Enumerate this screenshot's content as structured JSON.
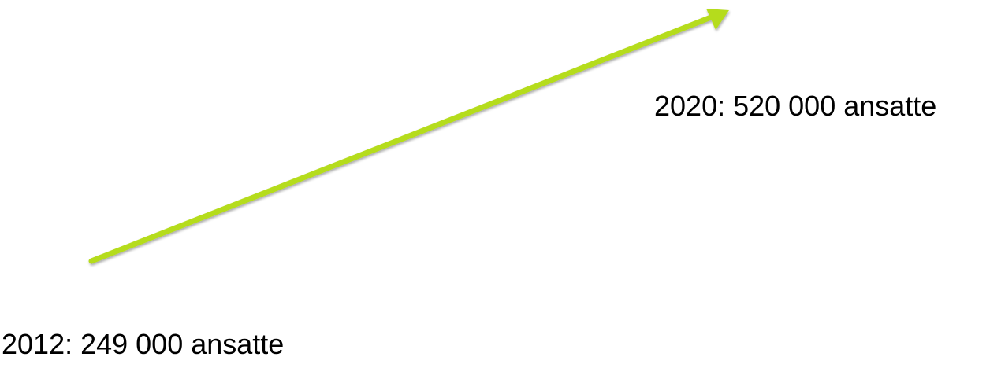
{
  "labels": {
    "start": "2012: 249 000 ansatte",
    "end": "2020: 520 000 ansatte"
  },
  "colors": {
    "arrow": "#b5dc1f",
    "text": "#000000"
  },
  "icons": {
    "growth_arrow": "arrow-up-right-icon"
  }
}
